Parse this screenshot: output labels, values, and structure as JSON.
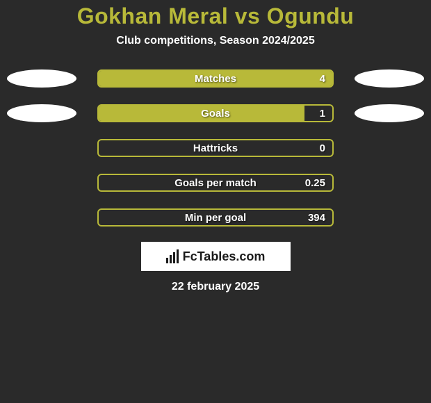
{
  "title": "Gokhan Meral vs Ogundu",
  "subtitle": "Club competitions, Season 2024/2025",
  "colors": {
    "background": "#2a2a2a",
    "title": "#b8b939",
    "text": "#ffffff",
    "bar_border": "#b8b939",
    "bar_fill": "#b8b939",
    "ellipse": "#ffffff",
    "branding_bg": "#ffffff",
    "branding_fg": "#1a1a1a"
  },
  "stats": [
    {
      "label": "Matches",
      "value": "4",
      "fill_pct": 100,
      "show_ellipses": true
    },
    {
      "label": "Goals",
      "value": "1",
      "fill_pct": 88,
      "show_ellipses": true
    },
    {
      "label": "Hattricks",
      "value": "0",
      "fill_pct": 0,
      "show_ellipses": false
    },
    {
      "label": "Goals per match",
      "value": "0.25",
      "fill_pct": 0,
      "show_ellipses": false
    },
    {
      "label": "Min per goal",
      "value": "394",
      "fill_pct": 0,
      "show_ellipses": false
    }
  ],
  "branding": "FcTables.com",
  "date": "22 february 2025"
}
